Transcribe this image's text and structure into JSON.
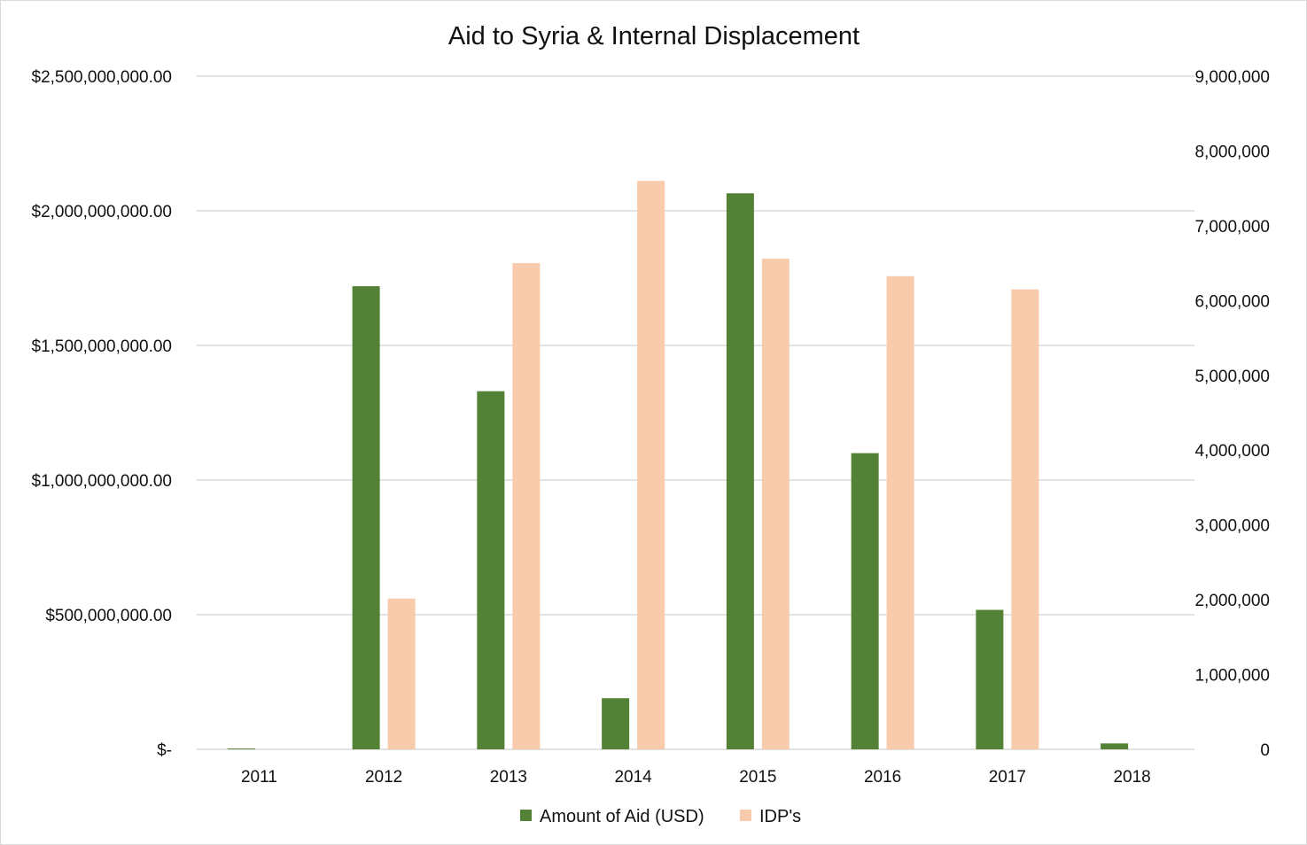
{
  "colors": {
    "aid": "#538135",
    "idp": "#f8cbad",
    "grid": "#d9d9d9",
    "text": "#111111"
  },
  "chart_data": {
    "type": "bar",
    "title": "Aid to Syria & Internal Displacement",
    "categories": [
      "2011",
      "2012",
      "2013",
      "2014",
      "2015",
      "2016",
      "2017",
      "2018"
    ],
    "series": [
      {
        "name": "Amount of Aid (USD)",
        "axis": "left",
        "color": "#538135",
        "values": [
          3000000,
          1720000000,
          1330000000,
          190000000,
          2065000000,
          1100000000,
          518000000,
          22000000
        ]
      },
      {
        "name": "IDP's",
        "axis": "right",
        "color": "#f8cbad",
        "values": [
          null,
          2016000,
          6500000,
          7600000,
          6560000,
          6326000,
          6150000,
          null
        ]
      }
    ],
    "y_left": {
      "min": 0,
      "max": 2500000000,
      "ticks": [
        0,
        500000000,
        1000000000,
        1500000000,
        2000000000,
        2500000000
      ],
      "tick_labels": [
        "$-",
        "$500,000,000.00",
        "$1,000,000,000.00",
        "$1,500,000,000.00",
        "$2,000,000,000.00",
        "$2,500,000,000.00"
      ]
    },
    "y_right": {
      "min": 0,
      "max": 9000000,
      "ticks": [
        0,
        1000000,
        2000000,
        3000000,
        4000000,
        5000000,
        6000000,
        7000000,
        8000000,
        9000000
      ],
      "tick_labels": [
        "0",
        "1,000,000",
        "2,000,000",
        "3,000,000",
        "4,000,000",
        "5,000,000",
        "6,000,000",
        "7,000,000",
        "8,000,000",
        "9,000,000"
      ]
    },
    "grid": true,
    "legend_position": "bottom"
  }
}
